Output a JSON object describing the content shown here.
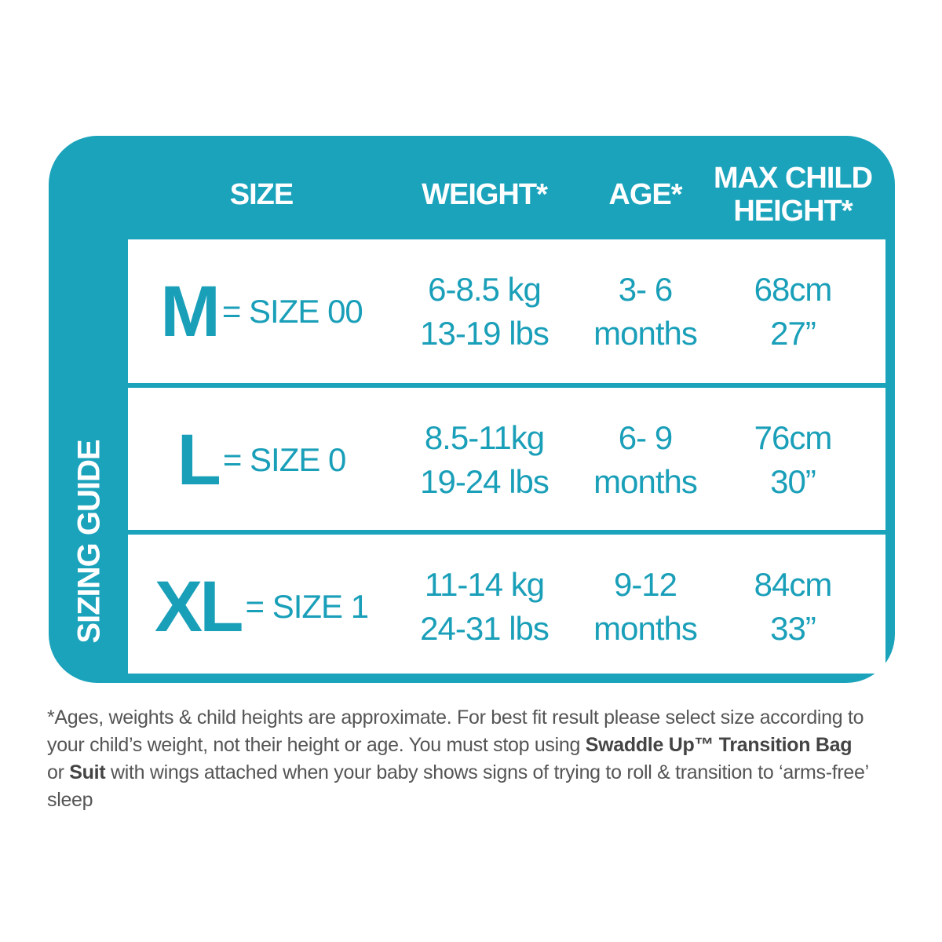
{
  "side_label": "SIZING GUIDE",
  "headers": [
    "SIZE",
    "WEIGHT*",
    "AGE*",
    "MAX CHILD HEIGHT*"
  ],
  "rows": [
    {
      "letter": "M",
      "size": "= SIZE 00",
      "weight": [
        "6-8.5 kg",
        "13-19 lbs"
      ],
      "age": [
        "3- 6",
        "months"
      ],
      "height": [
        "68cm",
        "27”"
      ]
    },
    {
      "letter": "L",
      "size": "= SIZE 0",
      "weight": [
        "8.5-11kg",
        "19-24 lbs"
      ],
      "age": [
        "6- 9",
        "months"
      ],
      "height": [
        "76cm",
        "30”"
      ]
    },
    {
      "letter": "XL",
      "size": "= SIZE 1",
      "weight": [
        "11-14 kg",
        "24-31 lbs"
      ],
      "age": [
        "9-12",
        "months"
      ],
      "height": [
        "84cm",
        "33”"
      ]
    }
  ],
  "footnote": [
    {
      "text": "*Ages, weights & child heights are approximate. For best fit result please select size according to your child’s weight, not their height or age. You must stop using ",
      "bold": false
    },
    {
      "text": "Swaddle Up™ Transition Bag",
      "bold": true
    },
    {
      "text": " or ",
      "bold": false
    },
    {
      "text": "Suit",
      "bold": true
    },
    {
      "text": " with wings attached when your baby shows signs of trying to roll & transition to ‘arms-free’ sleep",
      "bold": false
    }
  ]
}
